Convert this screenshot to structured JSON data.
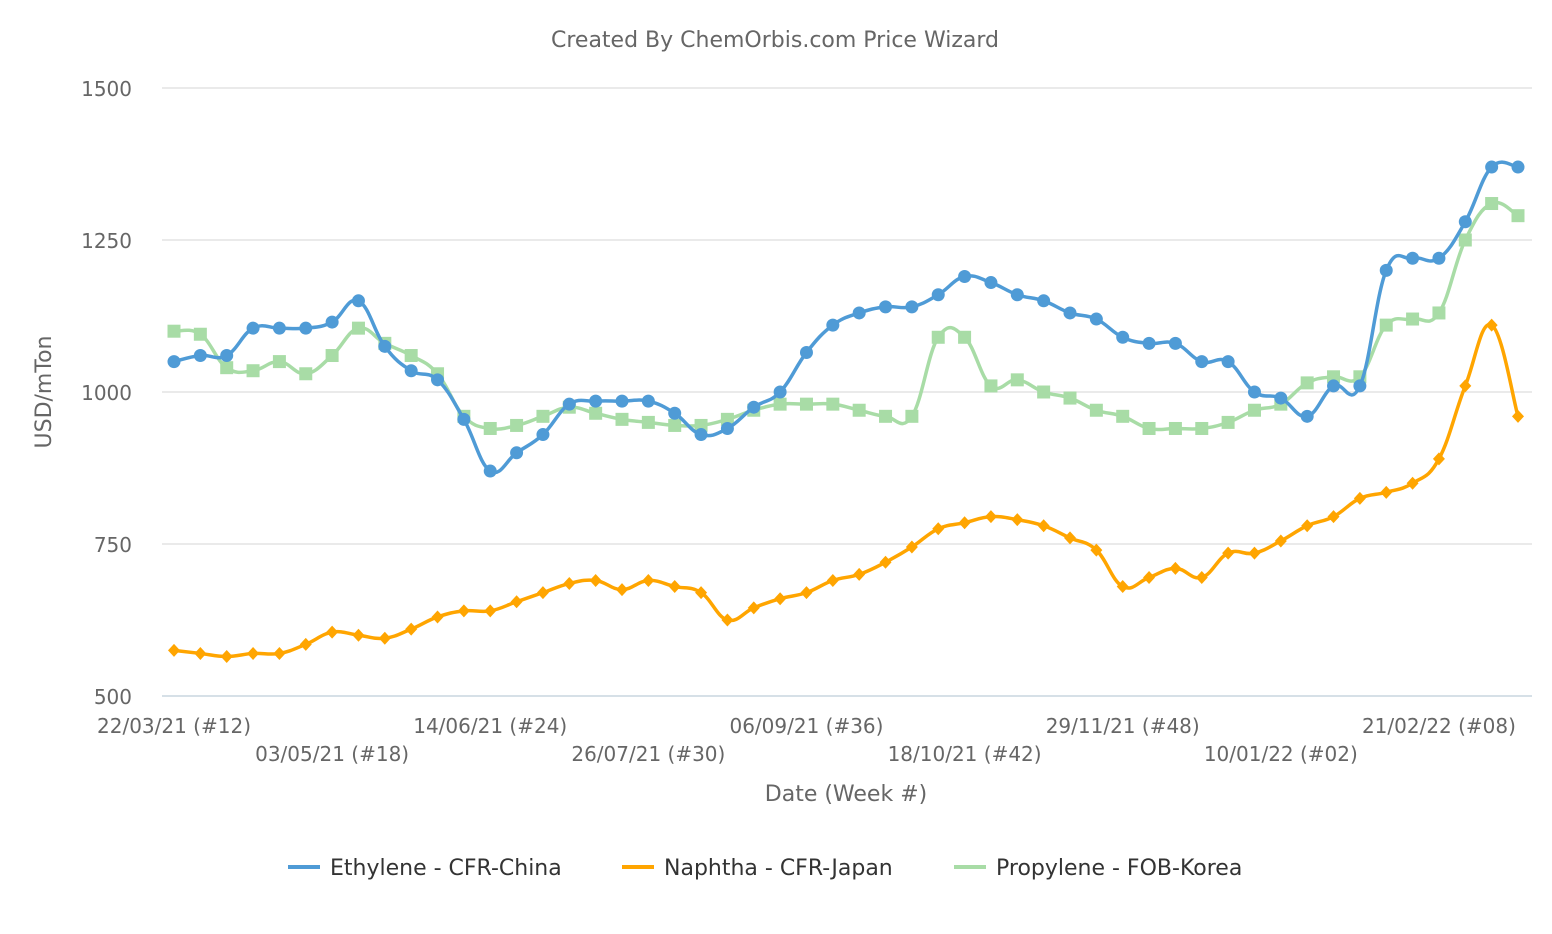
{
  "chart_data": {
    "type": "line",
    "title": "Created By ChemOrbis.com Price Wizard",
    "xlabel": "Date (Week #)",
    "ylabel": "USD/mTon",
    "ylim": [
      500,
      1500
    ],
    "yticks": [
      500,
      750,
      1000,
      1250,
      1500
    ],
    "grid": true,
    "legend_position": "bottom",
    "x": [
      "22/03/21",
      "29/03/21",
      "05/04/21",
      "12/04/21",
      "19/04/21",
      "26/04/21",
      "03/05/21",
      "10/05/21",
      "17/05/21",
      "24/05/21",
      "31/05/21",
      "07/06/21",
      "14/06/21",
      "21/06/21",
      "28/06/21",
      "05/07/21",
      "12/07/21",
      "19/07/21",
      "26/07/21",
      "02/08/21",
      "09/08/21",
      "16/08/21",
      "23/08/21",
      "30/08/21",
      "06/09/21",
      "13/09/21",
      "20/09/21",
      "27/09/21",
      "04/10/21",
      "11/10/21",
      "18/10/21",
      "25/10/21",
      "01/11/21",
      "08/11/21",
      "15/11/21",
      "22/11/21",
      "29/11/21",
      "06/12/21",
      "13/12/21",
      "20/12/21",
      "27/12/21",
      "03/01/22",
      "10/01/22",
      "17/01/22",
      "24/01/22",
      "31/01/22",
      "07/02/22",
      "14/02/22",
      "21/02/22",
      "28/02/22",
      "07/03/22",
      "14/03/22"
    ],
    "xtick_labels": [
      "22/03/21 (#12)",
      "03/05/21 (#18)",
      "14/06/21 (#24)",
      "26/07/21 (#30)",
      "06/09/21 (#36)",
      "18/10/21 (#42)",
      "29/11/21 (#48)",
      "10/01/22 (#02)",
      "21/02/22 (#08)"
    ],
    "series": [
      {
        "name": "Ethylene - CFR-China",
        "color": "#4f9bd6",
        "marker": "circle",
        "values": [
          1050,
          1060,
          1060,
          1105,
          1105,
          1105,
          1115,
          1150,
          1075,
          1035,
          1020,
          955,
          870,
          900,
          930,
          980,
          985,
          985,
          985,
          965,
          930,
          940,
          975,
          1000,
          1065,
          1110,
          1130,
          1140,
          1140,
          1160,
          1190,
          1180,
          1160,
          1150,
          1130,
          1120,
          1090,
          1080,
          1080,
          1050,
          1050,
          1000,
          990,
          960,
          1010,
          1010,
          1200,
          1220,
          1220,
          1280,
          1370,
          1370
        ]
      },
      {
        "name": "Naphtha - CFR-Japan",
        "color": "#ffa500",
        "marker": "diamond",
        "values": [
          575,
          570,
          565,
          570,
          570,
          585,
          605,
          600,
          595,
          610,
          630,
          640,
          640,
          655,
          670,
          685,
          690,
          675,
          690,
          680,
          670,
          625,
          645,
          660,
          670,
          690,
          700,
          720,
          745,
          775,
          785,
          795,
          790,
          780,
          760,
          740,
          680,
          695,
          710,
          695,
          735,
          735,
          755,
          780,
          795,
          825,
          835,
          850,
          890,
          1010,
          1110,
          960
        ]
      },
      {
        "name": "Propylene - FOB-Korea",
        "color": "#a8dca6",
        "marker": "square",
        "values": [
          1100,
          1095,
          1040,
          1035,
          1050,
          1030,
          1060,
          1105,
          1080,
          1060,
          1030,
          960,
          940,
          945,
          960,
          975,
          965,
          955,
          950,
          945,
          945,
          955,
          970,
          980,
          980,
          980,
          970,
          960,
          960,
          1090,
          1090,
          1010,
          1020,
          1000,
          990,
          970,
          960,
          940,
          940,
          940,
          950,
          970,
          980,
          1015,
          1025,
          1025,
          1110,
          1120,
          1130,
          1250,
          1310,
          1290
        ]
      }
    ]
  }
}
